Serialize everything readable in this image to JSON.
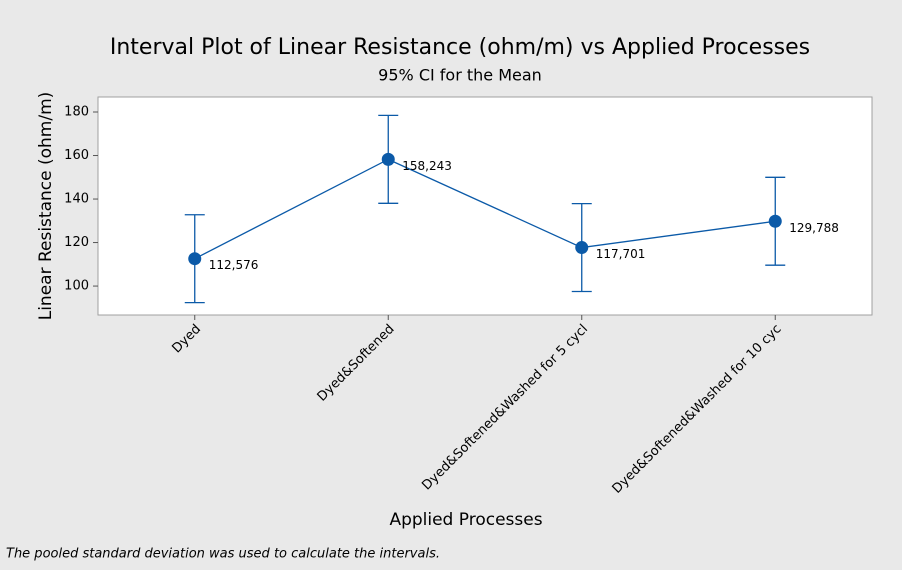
{
  "chart_data": {
    "type": "interval",
    "title": "Interval Plot of Linear Resistance (ohm/m) vs Applied Processes",
    "subtitle": "95% CI for the Mean",
    "x_label": "Applied Processes",
    "y_label": "Linear Resistance (ohm/m)",
    "footnote": "The pooled standard deviation was used to calculate the intervals.",
    "categories": [
      "Dyed",
      "Dyed&Softened",
      "Dyed&Softened&Washed for 5 cycl",
      "Dyed&Softened&Washed for 10 cyc"
    ],
    "values": [
      112.576,
      158.243,
      117.701,
      129.788
    ],
    "value_labels": [
      "112,576",
      "158,243",
      "117,701",
      "129,788"
    ],
    "errors": [
      20.2,
      20.2,
      20.2,
      20.2
    ],
    "color": "#0b5aa8",
    "ylim": [
      86.7,
      186.9
    ],
    "yticks": [
      100,
      120,
      140,
      160,
      180
    ]
  }
}
